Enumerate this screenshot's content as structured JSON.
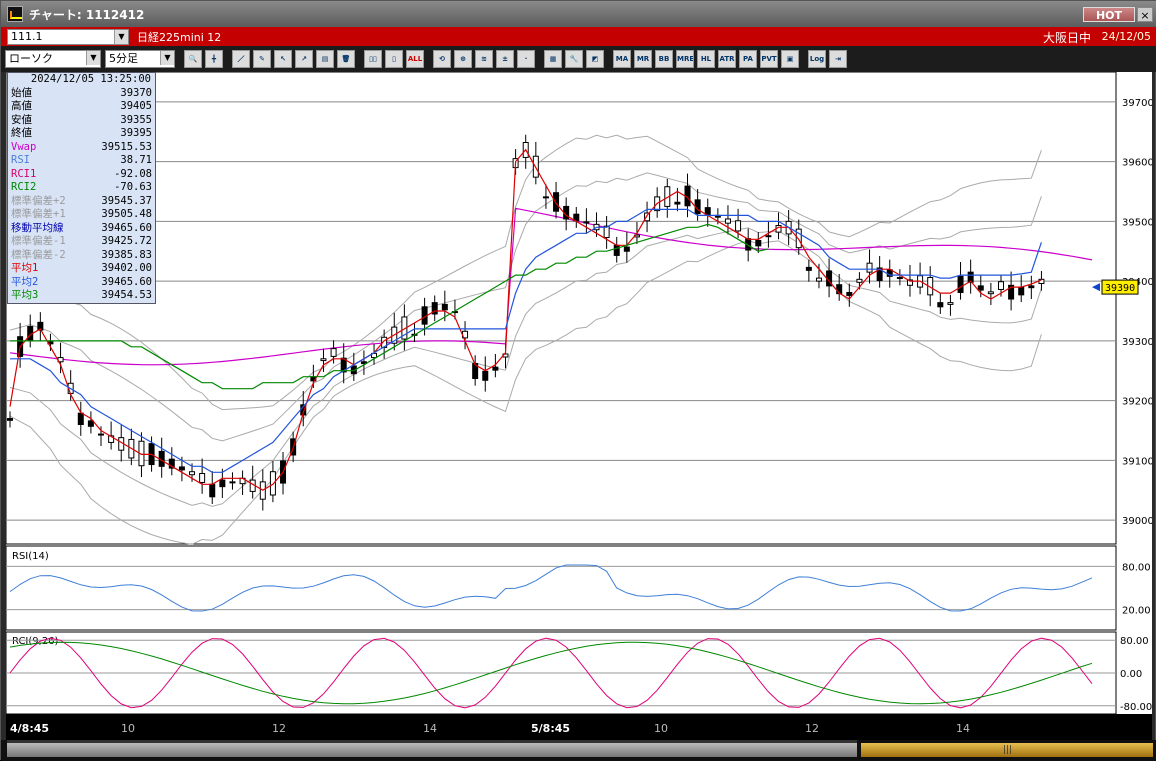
{
  "window": {
    "title": "チャート: 1112412",
    "hot_label": "HOT",
    "close_label": "×"
  },
  "infobar": {
    "code": "111.1",
    "instrument": "日経225mini 12",
    "session": "大阪日中",
    "date": "24/12/05"
  },
  "toolbar": {
    "chart_type": "ローソク",
    "interval": "5分足",
    "buttons": [
      "zoom-in",
      "cursor",
      "draw-line",
      "pen",
      "pointer",
      "trend",
      "note",
      "trash",
      "candle-wide",
      "candle-narrow",
      "all",
      "reset",
      "magnify",
      "ma",
      "signal",
      "blank",
      "grid",
      "wrench",
      "palette",
      "ma-btn",
      "mr",
      "bb",
      "mre",
      "hl",
      "atr",
      "para",
      "pvt",
      "frame",
      "log",
      "export"
    ],
    "labels": {
      "all": "ALL",
      "ma": "MA",
      "mr": "MR",
      "bb": "BB",
      "mre": "MRE",
      "hl": "HL",
      "atr": "ATR",
      "para": "PA\nRA",
      "pvt": "PVT",
      "log": "Log"
    }
  },
  "ohlc_panel": {
    "datetime": "2024/12/05  13:25:00",
    "rows": [
      {
        "key": "始値",
        "value": "39370",
        "color": "#000000"
      },
      {
        "key": "高値",
        "value": "39405",
        "color": "#000000"
      },
      {
        "key": "安値",
        "value": "39355",
        "color": "#000000"
      },
      {
        "key": "終値",
        "value": "39395",
        "color": "#000000"
      },
      {
        "key": "Vwap",
        "value": "39515.53",
        "color": "#cc00cc"
      },
      {
        "key": "RSI",
        "value": "38.71",
        "color": "#4a7fd8"
      },
      {
        "key": "RCI1",
        "value": "-92.08",
        "color": "#d4006c"
      },
      {
        "key": "RCI2",
        "value": "-70.63",
        "color": "#008800"
      },
      {
        "key": "標準偏差+2",
        "value": "39545.37",
        "color": "#9a9a9a"
      },
      {
        "key": "標準偏差+1",
        "value": "39505.48",
        "color": "#9a9a9a"
      },
      {
        "key": "移動平均線",
        "value": "39465.60",
        "color": "#0000aa"
      },
      {
        "key": "標準偏差-1",
        "value": "39425.72",
        "color": "#9a9a9a"
      },
      {
        "key": "標準偏差-2",
        "value": "39385.83",
        "color": "#9a9a9a"
      },
      {
        "key": "平均1",
        "value": "39402.00",
        "color": "#dd0000"
      },
      {
        "key": "平均2",
        "value": "39465.60",
        "color": "#2255dd"
      },
      {
        "key": "平均3",
        "value": "39454.53",
        "color": "#008800"
      }
    ]
  },
  "price_axis": {
    "labels": [
      "39700",
      "39600",
      "39500",
      "39400",
      "39300",
      "39200",
      "39100",
      "39000"
    ],
    "current": "39390"
  },
  "rsi_panel": {
    "title": "RSI(14)",
    "labels": [
      "80.00",
      "20.00"
    ]
  },
  "rci_panel": {
    "title": "RCI(9,26)",
    "labels": [
      "80.00",
      "0.00",
      "-80.00"
    ]
  },
  "time_axis": [
    "4/8:45",
    "10",
    "12",
    "14",
    "5/8:45",
    "10",
    "12",
    "14"
  ],
  "chart_data": {
    "type": "line",
    "title": "",
    "ylim": [
      38960,
      39750
    ],
    "x_count": 108,
    "series": [
      {
        "name": "平均1",
        "color": "#dd0000",
        "values": [
          39190,
          39290,
          39310,
          39320,
          39290,
          39260,
          39210,
          39180,
          39170,
          39150,
          39140,
          39130,
          39120,
          39110,
          39110,
          39100,
          39090,
          39080,
          39070,
          39060,
          39060,
          39070,
          39070,
          39070,
          39060,
          39050,
          39060,
          39080,
          39120,
          39180,
          39230,
          39260,
          39270,
          39270,
          39260,
          39270,
          39280,
          39300,
          39310,
          39320,
          39330,
          39340,
          39350,
          39350,
          39340,
          39300,
          39260,
          39250,
          39260,
          39280,
          39600,
          39620,
          39590,
          39560,
          39530,
          39510,
          39500,
          39490,
          39480,
          39470,
          39460,
          39460,
          39480,
          39510,
          39530,
          39540,
          39550,
          39540,
          39520,
          39510,
          39500,
          39490,
          39480,
          39470,
          39470,
          39480,
          39490,
          39490,
          39470,
          39440,
          39420,
          39400,
          39380,
          39370,
          39390,
          39410,
          39420,
          39420,
          39410,
          39400,
          39400,
          39390,
          39380,
          39380,
          39390,
          39400,
          39380,
          39370,
          39380,
          39390,
          39390,
          39395,
          39402
        ]
      },
      {
        "name": "平均2",
        "color": "#2255dd",
        "values": [
          39270,
          39270,
          39270,
          39260,
          39250,
          39230,
          39220,
          39210,
          39190,
          39180,
          39170,
          39160,
          39150,
          39140,
          39130,
          39120,
          39110,
          39100,
          39090,
          39090,
          39080,
          39080,
          39090,
          39100,
          39110,
          39120,
          39130,
          39150,
          39170,
          39190,
          39210,
          39220,
          39240,
          39250,
          39260,
          39270,
          39280,
          39290,
          39300,
          39310,
          39320,
          39320,
          39320,
          39320,
          39320,
          39320,
          39320,
          39320,
          39320,
          39320,
          39380,
          39420,
          39440,
          39450,
          39460,
          39470,
          39480,
          39480,
          39490,
          39490,
          39500,
          39500,
          39510,
          39520,
          39520,
          39520,
          39520,
          39520,
          39510,
          39510,
          39510,
          39510,
          39510,
          39510,
          39500,
          39500,
          39500,
          39490,
          39480,
          39470,
          39460,
          39440,
          39430,
          39420,
          39420,
          39420,
          39420,
          39410,
          39410,
          39410,
          39410,
          39410,
          39405,
          39405,
          39410,
          39410,
          39410,
          39410,
          39410,
          39410,
          39412,
          39415,
          39465
        ]
      },
      {
        "name": "平均3",
        "color": "#008800",
        "values": [
          39300,
          39300,
          39300,
          39300,
          39300,
          39300,
          39300,
          39300,
          39300,
          39300,
          39300,
          39300,
          39290,
          39290,
          39280,
          39270,
          39260,
          39250,
          39240,
          39230,
          39230,
          39220,
          39220,
          39220,
          39220,
          39230,
          39230,
          39230,
          39230,
          39240,
          39240,
          39240,
          39250,
          39250,
          39250,
          39260,
          39270,
          39280,
          39290,
          39300,
          39310,
          39320,
          39330,
          39340,
          39350,
          39360,
          39370,
          39380,
          39390,
          39400,
          39410,
          39410,
          39420,
          39420,
          39430,
          39430,
          39440,
          39440,
          39450,
          39450,
          39455,
          39460,
          39465,
          39470,
          39475,
          39480,
          39485,
          39490,
          39490,
          39495,
          39490,
          39480,
          39470,
          39460,
          39450,
          39454
        ]
      }
    ]
  }
}
